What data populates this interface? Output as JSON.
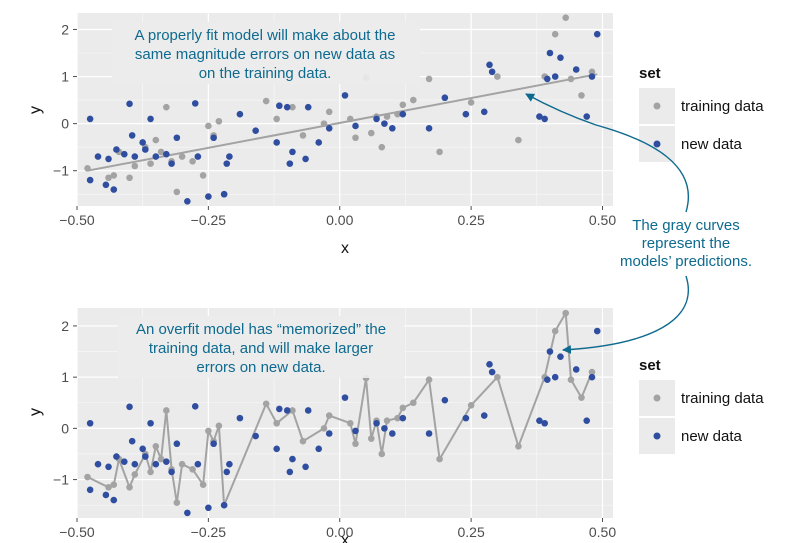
{
  "colors": {
    "training": "#a3a3a3",
    "new": "#2f4ea0",
    "annotation": "#0e6a8f",
    "panel": "#ebebeb",
    "grid": "#ffffff",
    "fit_line": "#a3a3a3"
  },
  "callout": {
    "lines": [
      "The gray curves",
      "represent the",
      "models’ predictions."
    ]
  },
  "chart_data": [
    {
      "type": "scatter",
      "xlabel": "x",
      "ylabel": "y",
      "xlim": [
        -0.5,
        0.52
      ],
      "ylim": [
        -1.75,
        2.35
      ],
      "x_ticks": [
        -0.5,
        -0.25,
        0.0,
        0.25,
        0.5
      ],
      "x_tick_labels": [
        "−0.50",
        "−0.25",
        "0.00",
        "0.25",
        "0.50"
      ],
      "y_ticks": [
        -1,
        0,
        1,
        2
      ],
      "y_tick_labels": [
        "−1",
        "0",
        "1",
        "2"
      ],
      "grid": true,
      "legend": {
        "title": "set",
        "position": "right",
        "entries": [
          {
            "label": "training data",
            "color": "#a3a3a3"
          },
          {
            "label": "new data",
            "color": "#2f4ea0"
          }
        ]
      },
      "annotation": {
        "lines": [
          "A properly fit model will make about the",
          "same magnitude errors on new data as",
          "on the training data."
        ]
      },
      "model_curve": {
        "kind": "linear fit",
        "x": [
          -0.48,
          0.49
        ],
        "y": [
          -1.0,
          1.05
        ]
      },
      "series": [
        {
          "name": "training data",
          "x": [
            -0.48,
            -0.44,
            -0.43,
            -0.42,
            -0.4,
            -0.39,
            -0.37,
            -0.36,
            -0.35,
            -0.34,
            -0.33,
            -0.32,
            -0.31,
            -0.3,
            -0.28,
            -0.26,
            -0.25,
            -0.24,
            -0.23,
            -0.22,
            -0.14,
            -0.12,
            -0.09,
            -0.07,
            -0.03,
            -0.02,
            0.02,
            0.03,
            0.05,
            0.06,
            0.07,
            0.08,
            0.09,
            0.11,
            0.12,
            0.14,
            0.17,
            0.19,
            0.25,
            0.3,
            0.34,
            0.39,
            0.41,
            0.43,
            0.44,
            0.46,
            0.48
          ],
          "y": [
            -0.95,
            -1.15,
            -1.1,
            -0.6,
            -1.15,
            -0.9,
            -0.5,
            -0.85,
            -0.35,
            -0.6,
            0.35,
            -0.8,
            -1.45,
            -0.7,
            -0.8,
            -1.1,
            -0.05,
            -0.25,
            0.05,
            -1.5,
            0.48,
            0.1,
            0.35,
            -0.25,
            0.0,
            0.25,
            0.1,
            -0.3,
            0.98,
            -0.2,
            0.15,
            -0.5,
            0.15,
            0.2,
            0.4,
            0.5,
            0.95,
            -0.6,
            0.45,
            1.0,
            -0.35,
            1.0,
            1.9,
            2.25,
            0.95,
            0.6,
            1.1
          ]
        },
        {
          "name": "new data",
          "x": [
            -0.475,
            -0.475,
            -0.46,
            -0.445,
            -0.44,
            -0.43,
            -0.425,
            -0.41,
            -0.4,
            -0.395,
            -0.39,
            -0.375,
            -0.37,
            -0.36,
            -0.35,
            -0.33,
            -0.32,
            -0.31,
            -0.29,
            -0.275,
            -0.27,
            -0.25,
            -0.24,
            -0.22,
            -0.215,
            -0.21,
            -0.19,
            -0.16,
            -0.12,
            -0.115,
            -0.1,
            -0.095,
            -0.09,
            -0.065,
            -0.06,
            -0.04,
            -0.02,
            0.01,
            0.03,
            0.07,
            0.085,
            0.1,
            0.12,
            0.17,
            0.2,
            0.24,
            0.275,
            0.285,
            0.29,
            0.38,
            0.39,
            0.395,
            0.4,
            0.41,
            0.42,
            0.45,
            0.47,
            0.48,
            0.49
          ],
          "y": [
            0.1,
            -1.2,
            -0.7,
            -1.3,
            -0.75,
            -1.4,
            -0.55,
            -0.65,
            0.42,
            -0.25,
            -0.7,
            -0.4,
            -0.55,
            0.1,
            -0.7,
            -0.65,
            -0.85,
            -0.3,
            -1.65,
            0.43,
            -0.7,
            -1.55,
            -0.3,
            -1.5,
            -0.85,
            -0.7,
            0.2,
            -0.15,
            -0.4,
            0.38,
            0.35,
            -0.85,
            -0.6,
            -0.75,
            0.35,
            -0.4,
            -0.1,
            0.6,
            -0.05,
            0.1,
            0.0,
            -0.1,
            0.2,
            -0.1,
            0.55,
            0.2,
            0.25,
            1.25,
            1.1,
            0.15,
            0.1,
            0.95,
            1.5,
            1.0,
            1.4,
            1.15,
            0.15,
            1.0,
            1.9
          ]
        }
      ]
    },
    {
      "type": "scatter",
      "xlabel": "x",
      "ylabel": "y",
      "xlim": [
        -0.5,
        0.52
      ],
      "ylim": [
        -1.75,
        2.35
      ],
      "x_ticks": [
        -0.5,
        -0.25,
        0.0,
        0.25,
        0.5
      ],
      "x_tick_labels": [
        "−0.50",
        "−0.25",
        "0.00",
        "0.25",
        "0.50"
      ],
      "y_ticks": [
        -1,
        0,
        1,
        2
      ],
      "y_tick_labels": [
        "−1",
        "0",
        "1",
        "2"
      ],
      "grid": true,
      "legend": {
        "title": "set",
        "position": "right",
        "entries": [
          {
            "label": "training data",
            "color": "#a3a3a3"
          },
          {
            "label": "new data",
            "color": "#2f4ea0"
          }
        ]
      },
      "annotation": {
        "lines": [
          "An overfit model has “memorized” the",
          "training data, and will make larger",
          "errors on new data."
        ]
      },
      "model_curve": {
        "kind": "interpolates training data"
      },
      "series": [
        {
          "name": "training data",
          "x": [
            -0.48,
            -0.44,
            -0.43,
            -0.42,
            -0.4,
            -0.39,
            -0.37,
            -0.36,
            -0.35,
            -0.34,
            -0.33,
            -0.32,
            -0.31,
            -0.3,
            -0.28,
            -0.26,
            -0.25,
            -0.24,
            -0.23,
            -0.22,
            -0.14,
            -0.12,
            -0.09,
            -0.07,
            -0.03,
            -0.02,
            0.02,
            0.03,
            0.05,
            0.06,
            0.07,
            0.08,
            0.09,
            0.11,
            0.12,
            0.14,
            0.17,
            0.19,
            0.25,
            0.3,
            0.34,
            0.39,
            0.41,
            0.43,
            0.44,
            0.46,
            0.48
          ],
          "y": [
            -0.95,
            -1.15,
            -1.1,
            -0.6,
            -1.15,
            -0.9,
            -0.5,
            -0.85,
            -0.35,
            -0.6,
            0.35,
            -0.8,
            -1.45,
            -0.7,
            -0.8,
            -1.1,
            -0.05,
            -0.25,
            0.05,
            -1.5,
            0.48,
            0.1,
            0.35,
            -0.25,
            0.0,
            0.25,
            0.1,
            -0.3,
            0.98,
            -0.2,
            0.15,
            -0.5,
            0.15,
            0.2,
            0.4,
            0.5,
            0.95,
            -0.6,
            0.45,
            1.0,
            -0.35,
            1.0,
            1.9,
            2.25,
            0.95,
            0.6,
            1.1
          ]
        },
        {
          "name": "new data",
          "x": [
            -0.475,
            -0.475,
            -0.46,
            -0.445,
            -0.44,
            -0.43,
            -0.425,
            -0.41,
            -0.4,
            -0.395,
            -0.39,
            -0.375,
            -0.37,
            -0.36,
            -0.35,
            -0.33,
            -0.32,
            -0.31,
            -0.29,
            -0.275,
            -0.27,
            -0.25,
            -0.24,
            -0.22,
            -0.215,
            -0.21,
            -0.19,
            -0.16,
            -0.12,
            -0.115,
            -0.1,
            -0.095,
            -0.09,
            -0.065,
            -0.06,
            -0.04,
            -0.02,
            0.01,
            0.03,
            0.07,
            0.085,
            0.1,
            0.12,
            0.17,
            0.2,
            0.24,
            0.275,
            0.285,
            0.29,
            0.38,
            0.39,
            0.395,
            0.4,
            0.41,
            0.42,
            0.45,
            0.47,
            0.48,
            0.49
          ],
          "y": [
            0.1,
            -1.2,
            -0.7,
            -1.3,
            -0.75,
            -1.4,
            -0.55,
            -0.65,
            0.42,
            -0.25,
            -0.7,
            -0.4,
            -0.55,
            0.1,
            -0.7,
            -0.65,
            -0.85,
            -0.3,
            -1.65,
            0.43,
            -0.7,
            -1.55,
            -0.3,
            -1.5,
            -0.85,
            -0.7,
            0.2,
            -0.15,
            -0.4,
            0.38,
            0.35,
            -0.85,
            -0.6,
            -0.75,
            0.35,
            -0.4,
            -0.1,
            0.6,
            -0.05,
            0.1,
            0.0,
            -0.1,
            0.2,
            -0.1,
            0.55,
            0.2,
            0.25,
            1.25,
            1.1,
            0.15,
            0.1,
            0.95,
            1.5,
            1.0,
            1.4,
            1.15,
            0.15,
            1.0,
            1.9
          ]
        }
      ]
    }
  ]
}
